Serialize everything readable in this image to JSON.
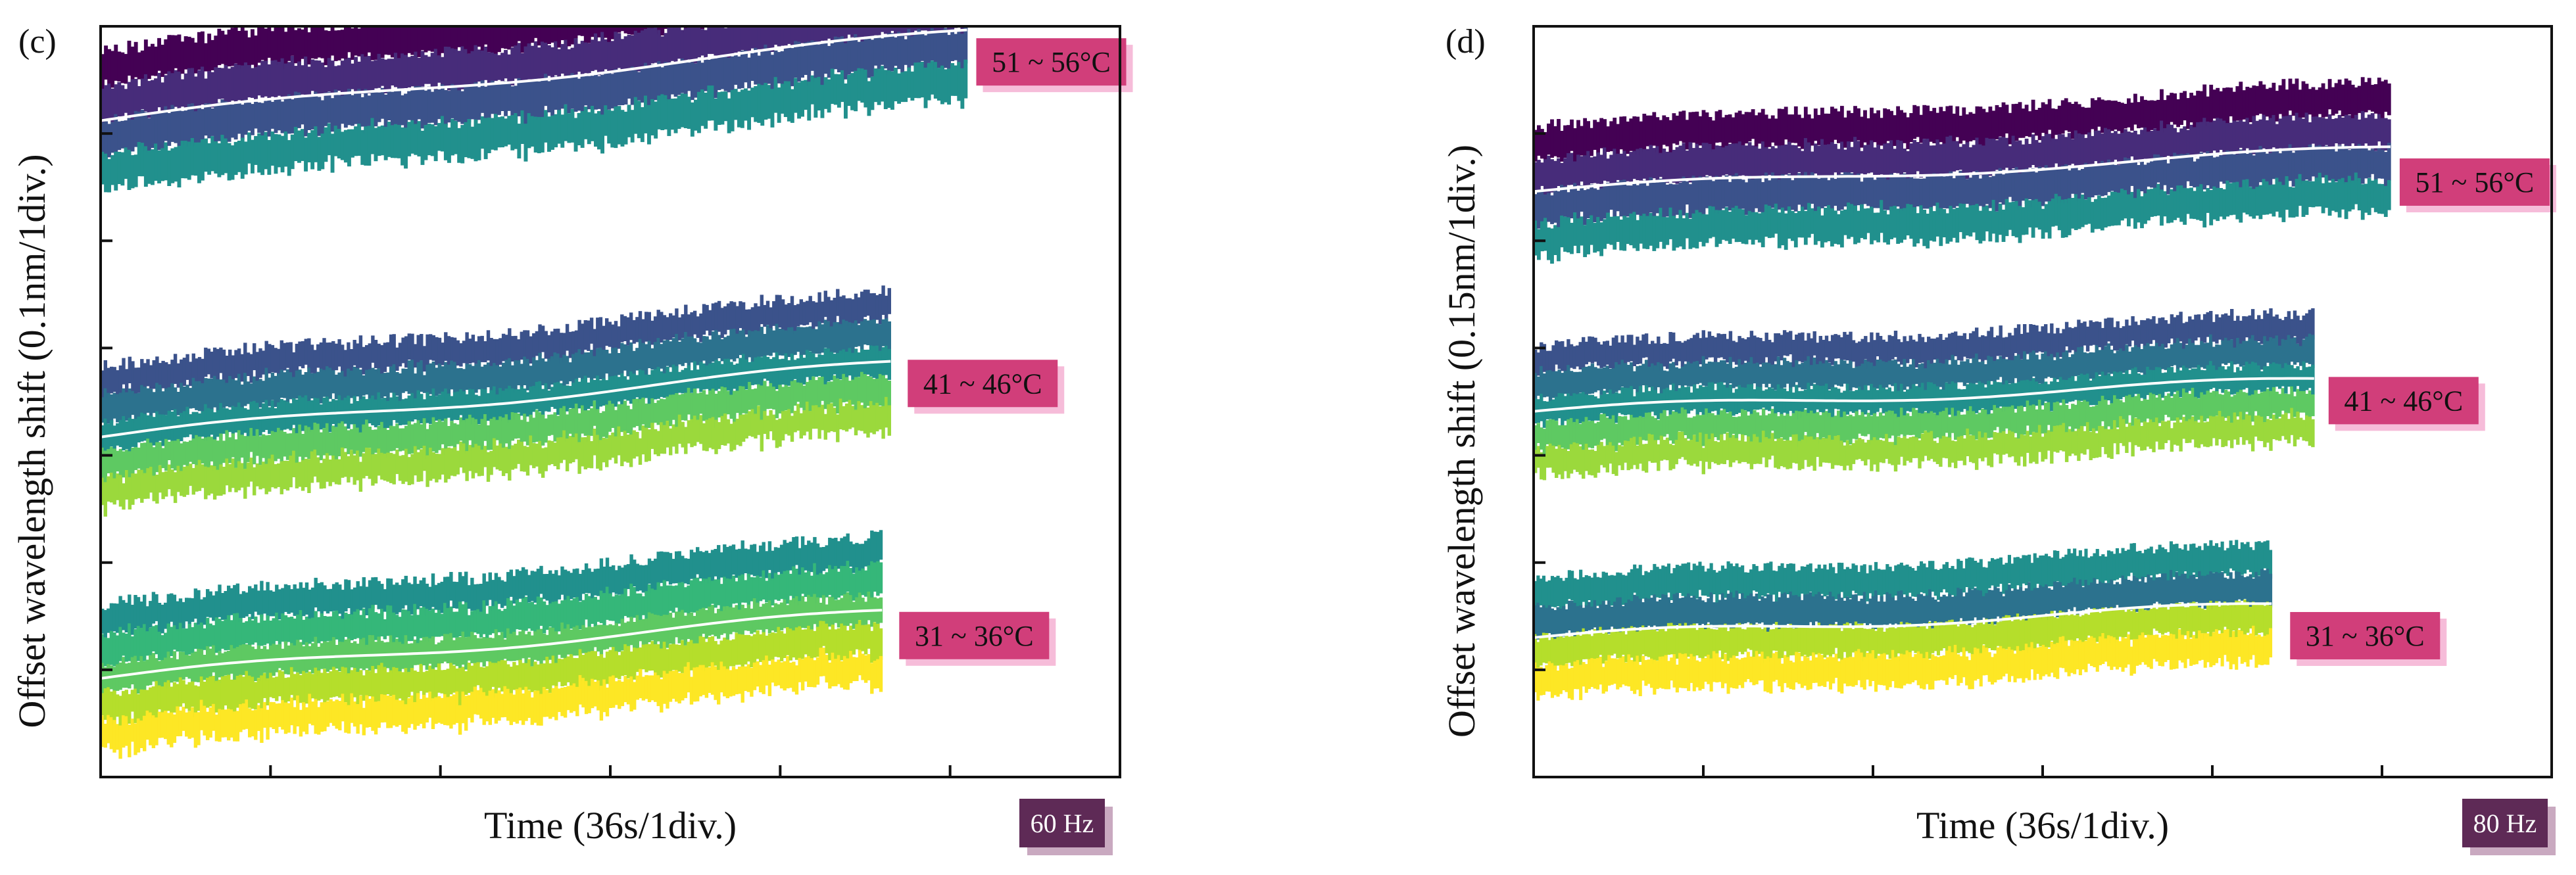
{
  "chart_data": [
    {
      "type": "line",
      "panel_label": "(c)",
      "xlabel": "Time (36s/1div.)",
      "ylabel": "Offset wavelength shift (0.1nm/1div.)",
      "frequency_badge": "60 Hz",
      "x_divisions": 6,
      "y_divisions": 7,
      "grid": false,
      "series": [
        {
          "name": "51 ~ 56°C",
          "mean_start": 6.12,
          "mean_end": 6.95,
          "length_div": 5.1,
          "band_half_width": 0.65,
          "colors": [
            "#440154",
            "#472c7a",
            "#3b528b",
            "#21908d"
          ]
        },
        {
          "name": "41 ~ 46°C",
          "mean_start": 3.17,
          "mean_end": 3.86,
          "length_div": 4.65,
          "band_half_width": 0.65,
          "colors": [
            "#3b528b",
            "#2c728e",
            "#21908d",
            "#5ec962",
            "#9bd93c"
          ]
        },
        {
          "name": "31 ~ 36°C",
          "mean_start": 0.92,
          "mean_end": 1.54,
          "length_div": 4.6,
          "band_half_width": 0.68,
          "colors": [
            "#21908d",
            "#35b779",
            "#5ec962",
            "#b5de2b",
            "#fde725"
          ]
        }
      ]
    },
    {
      "type": "line",
      "panel_label": "(d)",
      "xlabel": "Time (36s/1div.)",
      "ylabel": "Offset wavelength shift (0.15nm/1div.)",
      "frequency_badge": "80 Hz",
      "x_divisions": 6,
      "y_divisions": 7,
      "grid": false,
      "series": [
        {
          "name": "51 ~ 56°C",
          "mean_start": 5.46,
          "mean_end": 5.86,
          "length_div": 5.05,
          "band_half_width": 0.6,
          "colors": [
            "#440154",
            "#472c7a",
            "#3b528b",
            "#21908d"
          ]
        },
        {
          "name": "41 ~ 46°C",
          "mean_start": 3.41,
          "mean_end": 3.7,
          "length_div": 4.6,
          "band_half_width": 0.6,
          "colors": [
            "#3b528b",
            "#2c728e",
            "#21908d",
            "#5ec962",
            "#9bd93c"
          ]
        },
        {
          "name": "31 ~ 36°C",
          "mean_start": 1.3,
          "mean_end": 1.6,
          "length_div": 4.35,
          "band_half_width": 0.55,
          "colors": [
            "#21908d",
            "#2c728e",
            "#b5de2b",
            "#fde725"
          ]
        }
      ]
    }
  ],
  "colors": {
    "range_label_bg": "#d13e7a",
    "range_label_shadow": "#f6bcd9",
    "freq_badge_bg": "#5e2a56",
    "freq_badge_shadow": "#c9a9c0",
    "mean_line": "#ffffff",
    "axis": "#111111"
  }
}
